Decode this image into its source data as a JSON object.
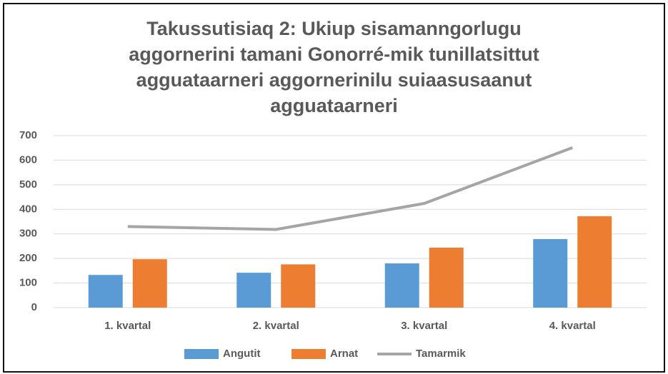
{
  "chart_data": {
    "type": "bar_line",
    "title": "Takussutisiaq 2: Ukiup sisamanngorlugu aggornerini tamani Gonorré-mik tunillatsittut agguataarneri aggornerinilu suiaasusaanut agguataarneri",
    "categories": [
      "1. kvartal",
      "2. kvartal",
      "3. kvartal",
      "4. kvartal"
    ],
    "series": [
      {
        "name": "Angutit",
        "color": "#5b9bd5",
        "type": "bar",
        "values": [
          133,
          142,
          180,
          279
        ]
      },
      {
        "name": "Arnat",
        "color": "#ed7d31",
        "type": "bar",
        "values": [
          197,
          176,
          244,
          372
        ]
      },
      {
        "name": "Tamarmik",
        "color": "#a5a5a5",
        "type": "line",
        "values": [
          330,
          318,
          424,
          651
        ]
      }
    ],
    "ylim": [
      0,
      700
    ],
    "yticks": [
      0,
      100,
      200,
      300,
      400,
      500,
      600,
      700
    ],
    "grid": true,
    "legend": "bottom"
  }
}
